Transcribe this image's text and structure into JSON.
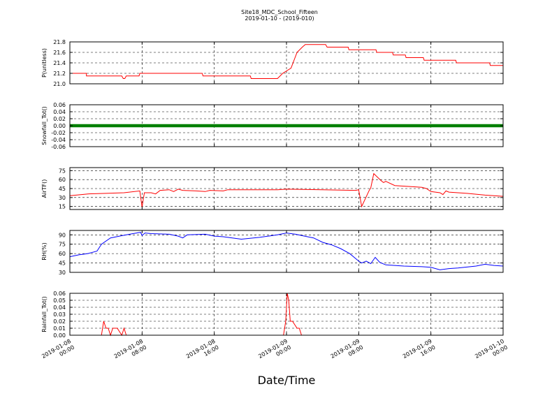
{
  "figure": {
    "title": "Site18_MDC_School_Fifteen",
    "subtitle": "2019-01-10 - (2019-010)",
    "xlabel": "Date/Time"
  },
  "chart_data": [
    {
      "type": "line",
      "ylabel": "P(unitless)",
      "ylim": [
        21.0,
        21.8
      ],
      "yticks": [
        "21.0",
        "21.2",
        "21.4",
        "21.6",
        "21.8"
      ],
      "xlim": [
        "2019-01-08 00:00",
        "2019-01-10 00:00"
      ],
      "xticks": [
        "2019-01-08 00:00",
        "2019-01-08 08:00",
        "2019-01-08 16:00",
        "2019-01-09 00:00",
        "2019-01-09 08:00",
        "2019-01-09 16:00",
        "2019-01-10 00:00"
      ],
      "grid": true,
      "color": "#ff0000",
      "x": [
        "2019-01-08 00:00",
        "2019-01-08 01:50",
        "2019-01-08 01:50",
        "2019-01-08 05:45",
        "2019-01-08 05:55",
        "2019-01-08 06:05",
        "2019-01-08 06:15",
        "2019-01-08 07:40",
        "2019-01-08 07:45",
        "2019-01-08 14:40",
        "2019-01-08 14:45",
        "2019-01-08 20:00",
        "2019-01-08 20:05",
        "2019-01-08 23:00",
        "2019-01-08 23:35",
        "2019-01-09 00:30",
        "2019-01-09 01:10",
        "2019-01-09 01:45",
        "2019-01-09 02:05",
        "2019-01-09 04:20",
        "2019-01-09 04:30",
        "2019-01-09 06:50",
        "2019-01-09 06:55",
        "2019-01-09 09:55",
        "2019-01-09 10:00",
        "2019-01-09 11:45",
        "2019-01-09 11:50",
        "2019-01-09 13:10",
        "2019-01-09 13:15",
        "2019-01-09 15:10",
        "2019-01-09 15:15",
        "2019-01-09 18:45",
        "2019-01-09 18:50",
        "2019-01-09 22:30",
        "2019-01-09 22:35",
        "2019-01-10 00:00"
      ],
      "y": [
        21.2,
        21.2,
        21.15,
        21.15,
        21.1,
        21.1,
        21.15,
        21.15,
        21.2,
        21.2,
        21.15,
        21.15,
        21.1,
        21.1,
        21.2,
        21.3,
        21.6,
        21.7,
        21.75,
        21.75,
        21.7,
        21.7,
        21.65,
        21.65,
        21.6,
        21.6,
        21.55,
        21.55,
        21.5,
        21.5,
        21.45,
        21.45,
        21.4,
        21.4,
        21.35,
        21.35
      ]
    },
    {
      "type": "scatter",
      "ylabel": "Snowfall_Tot()",
      "ylim": [
        -0.06,
        0.06
      ],
      "yticks": [
        "-0.06",
        "-0.04",
        "-0.02",
        "0.00",
        "0.02",
        "0.04",
        "0.06"
      ],
      "xlim": [
        "2019-01-08 00:00",
        "2019-01-10 00:00"
      ],
      "xticks": [
        "2019-01-08 00:00",
        "2019-01-08 08:00",
        "2019-01-08 16:00",
        "2019-01-09 00:00",
        "2019-01-09 08:00",
        "2019-01-09 16:00",
        "2019-01-10 00:00"
      ],
      "grid": true,
      "color": "#008000",
      "x": [
        "2019-01-08 00:00",
        "2019-01-10 00:00"
      ],
      "y": [
        0.0,
        0.0
      ],
      "note_constant": "every 5-minute sample = 0.0"
    },
    {
      "type": "line",
      "ylabel": "AirTF()",
      "ylim": [
        10,
        80
      ],
      "yticks": [
        "15",
        "30",
        "45",
        "60",
        "75"
      ],
      "xlim": [
        "2019-01-08 00:00",
        "2019-01-10 00:00"
      ],
      "xticks": [
        "2019-01-08 00:00",
        "2019-01-08 08:00",
        "2019-01-08 16:00",
        "2019-01-09 00:00",
        "2019-01-09 08:00",
        "2019-01-09 16:00",
        "2019-01-10 00:00"
      ],
      "grid": true,
      "color": "#ff0000",
      "x": [
        "2019-01-08 00:00",
        "2019-01-08 02:00",
        "2019-01-08 04:00",
        "2019-01-08 06:00",
        "2019-01-08 07:45",
        "2019-01-08 08:00",
        "2019-01-08 08:15",
        "2019-01-08 09:00",
        "2019-01-08 09:30",
        "2019-01-08 10:00",
        "2019-01-08 11:00",
        "2019-01-08 11:30",
        "2019-01-08 12:00",
        "2019-01-08 12:30",
        "2019-01-08 14:00",
        "2019-01-08 15:00",
        "2019-01-08 15:30",
        "2019-01-08 17:00",
        "2019-01-08 17:30",
        "2019-01-08 20:00",
        "2019-01-08 23:00",
        "2019-01-09 00:00",
        "2019-01-09 04:00",
        "2019-01-09 07:40",
        "2019-01-09 08:00",
        "2019-01-09 08:20",
        "2019-01-09 09:10",
        "2019-01-09 09:20",
        "2019-01-09 09:40",
        "2019-01-09 10:30",
        "2019-01-09 10:45",
        "2019-01-09 11:00",
        "2019-01-09 12:00",
        "2019-01-09 14:00",
        "2019-01-09 15:00",
        "2019-01-09 15:30",
        "2019-01-09 16:00",
        "2019-01-09 17:00",
        "2019-01-09 17:20",
        "2019-01-09 17:40",
        "2019-01-09 18:00",
        "2019-01-09 20:00",
        "2019-01-09 22:00",
        "2019-01-10 00:00"
      ],
      "y": [
        33,
        36,
        37,
        38,
        41,
        14,
        38,
        38,
        36,
        42,
        43,
        40,
        44,
        42,
        41,
        40,
        42,
        41,
        43,
        43,
        43,
        44,
        43,
        42,
        43,
        15,
        42,
        46,
        70,
        58,
        55,
        57,
        50,
        48,
        47,
        45,
        40,
        38,
        35,
        41,
        39,
        37,
        34,
        32
      ]
    },
    {
      "type": "line",
      "ylabel": "RH(%)",
      "ylim": [
        30,
        97
      ],
      "yticks": [
        "30",
        "45",
        "60",
        "75",
        "90"
      ],
      "xlim": [
        "2019-01-08 00:00",
        "2019-01-10 00:00"
      ],
      "xticks": [
        "2019-01-08 00:00",
        "2019-01-08 08:00",
        "2019-01-08 16:00",
        "2019-01-09 00:00",
        "2019-01-09 08:00",
        "2019-01-09 16:00",
        "2019-01-10 00:00"
      ],
      "grid": true,
      "color": "#0000ff",
      "x": [
        "2019-01-08 00:00",
        "2019-01-08 01:00",
        "2019-01-08 02:00",
        "2019-01-08 03:00",
        "2019-01-08 03:30",
        "2019-01-08 04:30",
        "2019-01-08 05:30",
        "2019-01-08 07:00",
        "2019-01-08 07:50",
        "2019-01-08 08:00",
        "2019-01-08 08:20",
        "2019-01-08 09:00",
        "2019-01-08 11:00",
        "2019-01-08 12:00",
        "2019-01-08 12:30",
        "2019-01-08 13:00",
        "2019-01-08 15:00",
        "2019-01-08 16:00",
        "2019-01-08 17:00",
        "2019-01-08 17:30",
        "2019-01-08 19:00",
        "2019-01-08 21:00",
        "2019-01-08 22:00",
        "2019-01-08 23:00",
        "2019-01-09 00:00",
        "2019-01-09 01:00",
        "2019-01-09 02:00",
        "2019-01-09 03:00",
        "2019-01-09 04:00",
        "2019-01-09 05:00",
        "2019-01-09 06:00",
        "2019-01-09 07:00",
        "2019-01-09 07:40",
        "2019-01-09 08:00",
        "2019-01-09 08:20",
        "2019-01-09 08:50",
        "2019-01-09 09:20",
        "2019-01-09 09:50",
        "2019-01-09 10:20",
        "2019-01-09 11:00",
        "2019-01-09 13:00",
        "2019-01-09 15:00",
        "2019-01-09 16:00",
        "2019-01-09 17:00",
        "2019-01-09 18:00",
        "2019-01-09 19:00",
        "2019-01-09 21:00",
        "2019-01-09 22:00",
        "2019-01-09 23:00",
        "2019-01-10 00:00"
      ],
      "y": [
        55,
        58,
        60,
        64,
        75,
        85,
        88,
        92,
        94,
        89,
        93,
        92,
        91,
        88,
        85,
        90,
        91,
        88,
        87,
        86,
        83,
        86,
        88,
        90,
        93,
        91,
        88,
        85,
        78,
        74,
        68,
        60,
        52,
        48,
        45,
        48,
        44,
        54,
        46,
        42,
        40,
        39,
        38,
        34,
        36,
        37,
        40,
        43,
        41,
        40
      ]
    },
    {
      "type": "line",
      "ylabel": "Rainfall_Tot()",
      "ylim": [
        0,
        0.06
      ],
      "yticks": [
        "0.00",
        "0.01",
        "0.02",
        "0.03",
        "0.04",
        "0.05",
        "0.06"
      ],
      "xlim": [
        "2019-01-08 00:00",
        "2019-01-10 00:00"
      ],
      "xticks": [
        "2019-01-08 00:00",
        "2019-01-08 08:00",
        "2019-01-08 16:00",
        "2019-01-09 00:00",
        "2019-01-09 08:00",
        "2019-01-09 16:00",
        "2019-01-10 00:00"
      ],
      "grid": true,
      "color": "#ff0000",
      "x": [
        "2019-01-08 00:00",
        "2019-01-08 03:30",
        "2019-01-08 03:45",
        "2019-01-08 04:00",
        "2019-01-08 04:15",
        "2019-01-08 04:30",
        "2019-01-08 04:45",
        "2019-01-08 05:00",
        "2019-01-08 05:15",
        "2019-01-08 05:45",
        "2019-01-08 06:00",
        "2019-01-08 06:15",
        "2019-01-08 06:30",
        "2019-01-08 23:40",
        "2019-01-08 23:55",
        "2019-01-09 00:05",
        "2019-01-09 00:15",
        "2019-01-09 00:25",
        "2019-01-09 00:40",
        "2019-01-09 01:10",
        "2019-01-09 01:25",
        "2019-01-09 01:40",
        "2019-01-10 00:00"
      ],
      "y": [
        0,
        0,
        0.02,
        0.01,
        0.01,
        0,
        0.01,
        0.01,
        0.01,
        0,
        0.01,
        0,
        0,
        0,
        0.02,
        0.06,
        0.05,
        0.02,
        0.02,
        0.01,
        0.01,
        0,
        0
      ]
    }
  ]
}
